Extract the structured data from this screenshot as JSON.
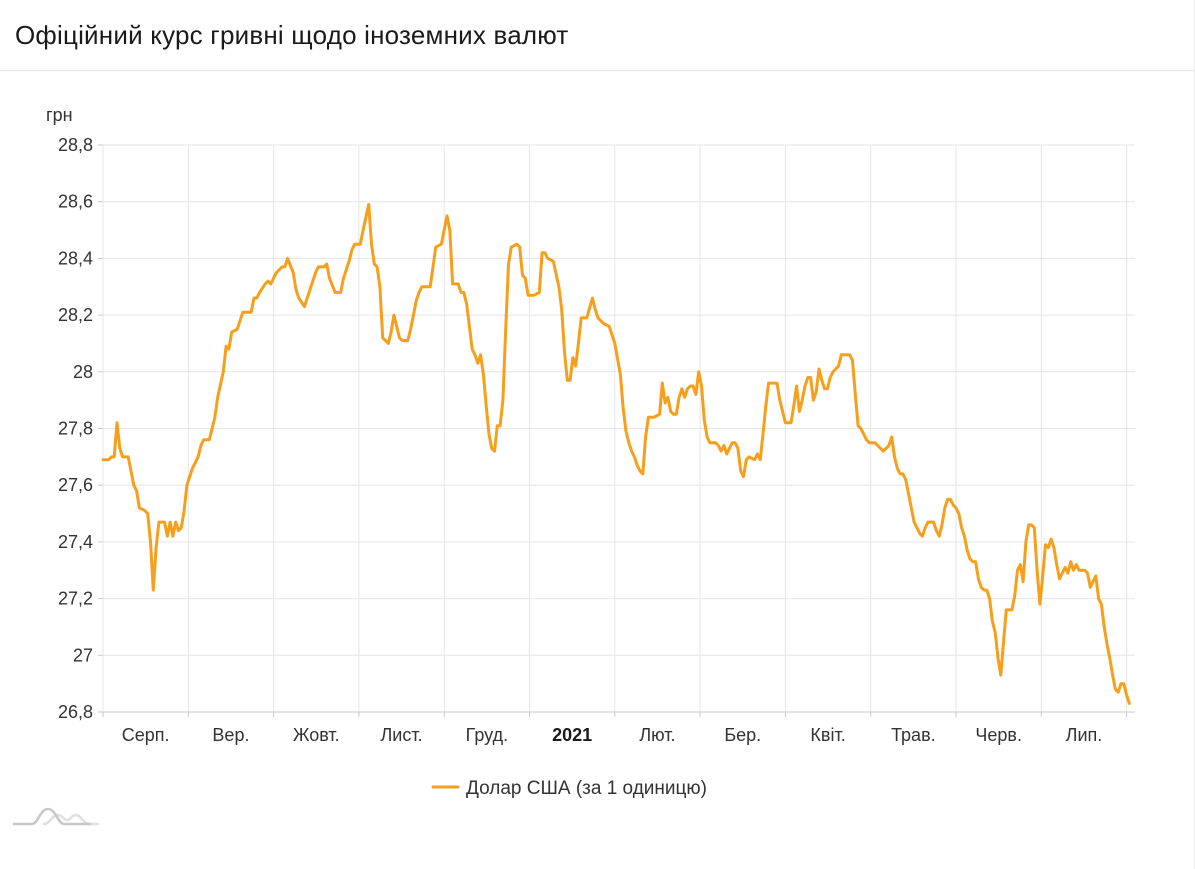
{
  "header": {
    "title": "Офіційний курс гривні щодо іноземних валют"
  },
  "legend": {
    "label": "Долар США (за 1 одиницю)"
  },
  "icons": {
    "watermark": "waves-chart-logo"
  },
  "colors": {
    "series": "#f79e1b",
    "grid": "#e6e6e6",
    "axis": "#c9c9c9",
    "text": "#333333",
    "title": "#1a1a1a"
  },
  "chart_data": {
    "type": "line",
    "title": "Офіційний курс гривні щодо іноземних валют",
    "ylabel_unit": "грн",
    "ylim": [
      26.8,
      28.8
    ],
    "y_tick_values": [
      26.8,
      27,
      27.2,
      27.4,
      27.6,
      27.8,
      28,
      28.2,
      28.4,
      28.6,
      28.8
    ],
    "y_tick_labels": [
      "26,8",
      "27",
      "27,2",
      "27,4",
      "27,6",
      "27,8",
      "28",
      "28,2",
      "28,4",
      "28,6",
      "28,8"
    ],
    "x_tick_labels": [
      "Серп.",
      "Вер.",
      "Жовт.",
      "Лист.",
      "Груд.",
      "2021",
      "Лют.",
      "Бер.",
      "Квіт.",
      "Трав.",
      "Черв.",
      "Лип."
    ],
    "x_bold_label": "2021",
    "x_range_days": [
      0,
      369
    ],
    "days_per_month": 30.5,
    "grid": true,
    "legend_position": "bottom-center",
    "series": [
      {
        "name": "Долар США (за 1 одиницю)",
        "color": "#f79e1b",
        "points": [
          [
            0,
            27.69
          ],
          [
            2,
            27.69
          ],
          [
            3,
            27.7
          ],
          [
            4,
            27.7
          ],
          [
            5,
            27.82
          ],
          [
            6,
            27.73
          ],
          [
            7,
            27.7
          ],
          [
            9,
            27.7
          ],
          [
            10,
            27.65
          ],
          [
            11,
            27.6
          ],
          [
            12,
            27.58
          ],
          [
            13,
            27.52
          ],
          [
            15,
            27.51
          ],
          [
            16,
            27.5
          ],
          [
            17,
            27.4
          ],
          [
            18,
            27.23
          ],
          [
            19,
            27.38
          ],
          [
            20,
            27.47
          ],
          [
            22,
            27.47
          ],
          [
            23,
            27.42
          ],
          [
            24,
            27.47
          ],
          [
            25,
            27.42
          ],
          [
            26,
            27.47
          ],
          [
            27,
            27.44
          ],
          [
            28,
            27.45
          ],
          [
            29,
            27.51
          ],
          [
            30,
            27.6
          ],
          [
            31,
            27.63
          ],
          [
            32,
            27.66
          ],
          [
            34,
            27.7
          ],
          [
            35,
            27.74
          ],
          [
            36,
            27.76
          ],
          [
            38,
            27.76
          ],
          [
            39,
            27.8
          ],
          [
            40,
            27.84
          ],
          [
            41,
            27.91
          ],
          [
            43,
            28.0
          ],
          [
            44,
            28.09
          ],
          [
            45,
            28.08
          ],
          [
            46,
            28.14
          ],
          [
            48,
            28.15
          ],
          [
            50,
            28.21
          ],
          [
            53,
            28.21
          ],
          [
            54,
            28.26
          ],
          [
            55,
            28.26
          ],
          [
            56,
            28.28
          ],
          [
            58,
            28.31
          ],
          [
            59,
            28.32
          ],
          [
            60,
            28.31
          ],
          [
            61,
            28.33
          ],
          [
            62,
            28.35
          ],
          [
            64,
            28.37
          ],
          [
            65,
            28.37
          ],
          [
            66,
            28.4
          ],
          [
            68,
            28.35
          ],
          [
            69,
            28.29
          ],
          [
            70,
            28.26
          ],
          [
            72,
            28.23
          ],
          [
            73,
            28.26
          ],
          [
            75,
            28.32
          ],
          [
            76,
            28.35
          ],
          [
            77,
            28.37
          ],
          [
            79,
            28.37
          ],
          [
            80,
            28.38
          ],
          [
            81,
            28.33
          ],
          [
            83,
            28.28
          ],
          [
            85,
            28.28
          ],
          [
            86,
            28.33
          ],
          [
            88,
            28.39
          ],
          [
            89,
            28.43
          ],
          [
            90,
            28.45
          ],
          [
            92,
            28.45
          ],
          [
            93,
            28.5
          ],
          [
            95,
            28.59
          ],
          [
            96,
            28.45
          ],
          [
            97,
            28.38
          ],
          [
            98,
            28.37
          ],
          [
            99,
            28.3
          ],
          [
            100,
            28.12
          ],
          [
            102,
            28.1
          ],
          [
            103,
            28.14
          ],
          [
            104,
            28.2
          ],
          [
            105,
            28.16
          ],
          [
            106,
            28.12
          ],
          [
            107,
            28.11
          ],
          [
            109,
            28.11
          ],
          [
            110,
            28.15
          ],
          [
            112,
            28.25
          ],
          [
            113,
            28.28
          ],
          [
            114,
            28.3
          ],
          [
            117,
            28.3
          ],
          [
            119,
            28.44
          ],
          [
            121,
            28.45
          ],
          [
            122,
            28.5
          ],
          [
            123,
            28.55
          ],
          [
            124,
            28.5
          ],
          [
            125,
            28.31
          ],
          [
            127,
            28.31
          ],
          [
            128,
            28.28
          ],
          [
            129,
            28.28
          ],
          [
            130,
            28.24
          ],
          [
            131,
            28.16
          ],
          [
            132,
            28.08
          ],
          [
            133,
            28.06
          ],
          [
            134,
            28.03
          ],
          [
            135,
            28.06
          ],
          [
            136,
            27.99
          ],
          [
            137,
            27.88
          ],
          [
            138,
            27.78
          ],
          [
            139,
            27.73
          ],
          [
            140,
            27.72
          ],
          [
            141,
            27.81
          ],
          [
            142,
            27.81
          ],
          [
            143,
            27.9
          ],
          [
            144,
            28.15
          ],
          [
            145,
            28.38
          ],
          [
            146,
            28.44
          ],
          [
            148,
            28.45
          ],
          [
            149,
            28.44
          ],
          [
            150,
            28.34
          ],
          [
            151,
            28.33
          ],
          [
            152,
            28.27
          ],
          [
            154,
            28.27
          ],
          [
            156,
            28.28
          ],
          [
            157,
            28.42
          ],
          [
            158,
            28.42
          ],
          [
            159,
            28.4
          ],
          [
            161,
            28.39
          ],
          [
            163,
            28.3
          ],
          [
            164,
            28.22
          ],
          [
            165,
            28.07
          ],
          [
            166,
            27.97
          ],
          [
            167,
            27.97
          ],
          [
            168,
            28.05
          ],
          [
            169,
            28.02
          ],
          [
            170,
            28.1
          ],
          [
            171,
            28.19
          ],
          [
            173,
            28.19
          ],
          [
            175,
            28.26
          ],
          [
            176,
            28.22
          ],
          [
            177,
            28.19
          ],
          [
            179,
            28.17
          ],
          [
            181,
            28.16
          ],
          [
            183,
            28.1
          ],
          [
            185,
            27.99
          ],
          [
            186,
            27.87
          ],
          [
            187,
            27.79
          ],
          [
            188,
            27.75
          ],
          [
            189,
            27.72
          ],
          [
            190,
            27.7
          ],
          [
            191,
            27.67
          ],
          [
            192,
            27.65
          ],
          [
            193,
            27.64
          ],
          [
            194,
            27.77
          ],
          [
            195,
            27.84
          ],
          [
            197,
            27.84
          ],
          [
            199,
            27.85
          ],
          [
            200,
            27.96
          ],
          [
            201,
            27.89
          ],
          [
            202,
            27.91
          ],
          [
            203,
            27.86
          ],
          [
            204,
            27.85
          ],
          [
            205,
            27.85
          ],
          [
            206,
            27.91
          ],
          [
            207,
            27.94
          ],
          [
            208,
            27.91
          ],
          [
            209,
            27.94
          ],
          [
            210,
            27.95
          ],
          [
            211,
            27.95
          ],
          [
            212,
            27.92
          ],
          [
            213,
            28.0
          ],
          [
            214,
            27.95
          ],
          [
            215,
            27.83
          ],
          [
            216,
            27.77
          ],
          [
            217,
            27.75
          ],
          [
            219,
            27.75
          ],
          [
            220,
            27.74
          ],
          [
            221,
            27.72
          ],
          [
            222,
            27.74
          ],
          [
            223,
            27.71
          ],
          [
            224,
            27.73
          ],
          [
            225,
            27.75
          ],
          [
            226,
            27.75
          ],
          [
            227,
            27.73
          ],
          [
            228,
            27.65
          ],
          [
            229,
            27.63
          ],
          [
            230,
            27.69
          ],
          [
            231,
            27.7
          ],
          [
            233,
            27.69
          ],
          [
            234,
            27.71
          ],
          [
            235,
            27.69
          ],
          [
            236,
            27.78
          ],
          [
            237,
            27.88
          ],
          [
            238,
            27.96
          ],
          [
            241,
            27.96
          ],
          [
            242,
            27.9
          ],
          [
            244,
            27.82
          ],
          [
            246,
            27.82
          ],
          [
            247,
            27.88
          ],
          [
            248,
            27.95
          ],
          [
            249,
            27.86
          ],
          [
            250,
            27.9
          ],
          [
            251,
            27.95
          ],
          [
            252,
            27.98
          ],
          [
            253,
            27.98
          ],
          [
            254,
            27.9
          ],
          [
            255,
            27.93
          ],
          [
            256,
            28.01
          ],
          [
            257,
            27.97
          ],
          [
            258,
            27.94
          ],
          [
            259,
            27.94
          ],
          [
            260,
            27.98
          ],
          [
            261,
            28.0
          ],
          [
            262,
            28.01
          ],
          [
            263,
            28.02
          ],
          [
            264,
            28.06
          ],
          [
            267,
            28.06
          ],
          [
            268,
            28.04
          ],
          [
            269,
            27.92
          ],
          [
            270,
            27.81
          ],
          [
            271,
            27.8
          ],
          [
            272,
            27.78
          ],
          [
            273,
            27.76
          ],
          [
            274,
            27.75
          ],
          [
            276,
            27.75
          ],
          [
            277,
            27.74
          ],
          [
            278,
            27.73
          ],
          [
            279,
            27.72
          ],
          [
            281,
            27.74
          ],
          [
            282,
            27.77
          ],
          [
            283,
            27.7
          ],
          [
            284,
            27.66
          ],
          [
            285,
            27.64
          ],
          [
            286,
            27.64
          ],
          [
            287,
            27.62
          ],
          [
            288,
            27.57
          ],
          [
            289,
            27.52
          ],
          [
            290,
            27.47
          ],
          [
            291,
            27.45
          ],
          [
            292,
            27.43
          ],
          [
            293,
            27.42
          ],
          [
            294,
            27.45
          ],
          [
            295,
            27.47
          ],
          [
            297,
            27.47
          ],
          [
            298,
            27.44
          ],
          [
            299,
            27.42
          ],
          [
            300,
            27.46
          ],
          [
            301,
            27.52
          ],
          [
            302,
            27.55
          ],
          [
            303,
            27.55
          ],
          [
            304,
            27.53
          ],
          [
            305,
            27.52
          ],
          [
            306,
            27.5
          ],
          [
            307,
            27.45
          ],
          [
            308,
            27.42
          ],
          [
            309,
            27.37
          ],
          [
            310,
            27.34
          ],
          [
            311,
            27.33
          ],
          [
            312,
            27.33
          ],
          [
            313,
            27.27
          ],
          [
            314,
            27.24
          ],
          [
            315,
            27.23
          ],
          [
            316,
            27.23
          ],
          [
            317,
            27.2
          ],
          [
            318,
            27.12
          ],
          [
            319,
            27.08
          ],
          [
            320,
            26.99
          ],
          [
            321,
            26.93
          ],
          [
            322,
            27.05
          ],
          [
            323,
            27.16
          ],
          [
            325,
            27.16
          ],
          [
            326,
            27.21
          ],
          [
            327,
            27.3
          ],
          [
            328,
            27.32
          ],
          [
            329,
            27.26
          ],
          [
            330,
            27.4
          ],
          [
            331,
            27.46
          ],
          [
            332,
            27.46
          ],
          [
            333,
            27.45
          ],
          [
            334,
            27.3
          ],
          [
            335,
            27.18
          ],
          [
            336,
            27.28
          ],
          [
            337,
            27.39
          ],
          [
            338,
            27.38
          ],
          [
            339,
            27.41
          ],
          [
            340,
            27.38
          ],
          [
            341,
            27.32
          ],
          [
            342,
            27.27
          ],
          [
            343,
            27.29
          ],
          [
            344,
            27.31
          ],
          [
            345,
            27.29
          ],
          [
            346,
            27.33
          ],
          [
            347,
            27.3
          ],
          [
            348,
            27.32
          ],
          [
            349,
            27.3
          ],
          [
            351,
            27.3
          ],
          [
            352,
            27.29
          ],
          [
            353,
            27.24
          ],
          [
            354,
            27.26
          ],
          [
            355,
            27.28
          ],
          [
            356,
            27.2
          ],
          [
            357,
            27.18
          ],
          [
            358,
            27.1
          ],
          [
            359,
            27.04
          ],
          [
            360,
            26.99
          ],
          [
            361,
            26.93
          ],
          [
            362,
            26.88
          ],
          [
            363,
            26.87
          ],
          [
            364,
            26.9
          ],
          [
            365,
            26.9
          ],
          [
            366,
            26.86
          ],
          [
            367,
            26.83
          ]
        ]
      }
    ]
  }
}
